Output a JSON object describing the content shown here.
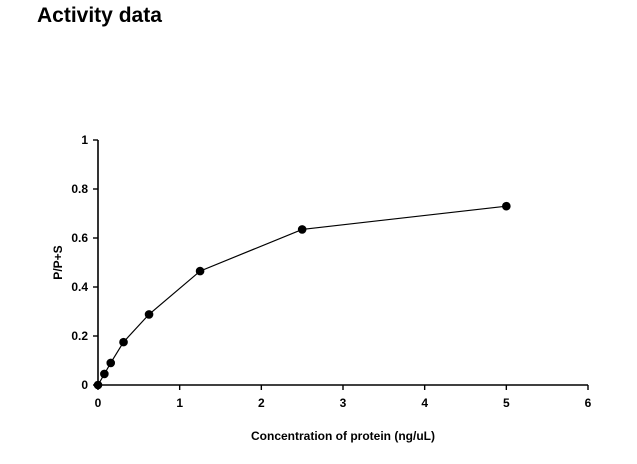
{
  "page": {
    "title": "Activity data"
  },
  "chart_data": {
    "type": "line",
    "title": "",
    "xlabel": "Concentration of protein (ng/uL)",
    "ylabel": "P/P+S",
    "xlim": [
      0,
      6
    ],
    "ylim": [
      0,
      1
    ],
    "xticks": [
      0,
      1,
      2,
      3,
      4,
      5,
      6
    ],
    "yticks": [
      0,
      0.2,
      0.4,
      0.6,
      0.8,
      1
    ],
    "xtick_labels": [
      "0",
      "1",
      "2",
      "3",
      "4",
      "5",
      "6"
    ],
    "ytick_labels": [
      "0",
      "0.2",
      "0.4",
      "0.6",
      "0.8",
      "1"
    ],
    "grid": false,
    "series": [
      {
        "x": [
          0,
          0.078,
          0.156,
          0.3125,
          0.625,
          1.25,
          2.5,
          5
        ],
        "y": [
          0,
          0.045,
          0.09,
          0.175,
          0.288,
          0.465,
          0.635,
          0.73
        ]
      }
    ],
    "colors": {
      "line": "#000000",
      "marker": "#000000"
    }
  }
}
